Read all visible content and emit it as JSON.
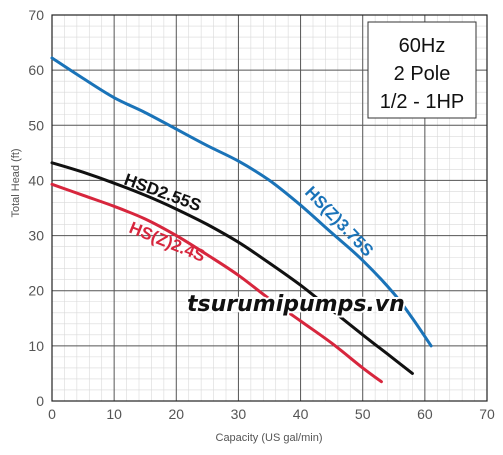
{
  "chart_data": {
    "type": "line",
    "xlabel": "Capacity (US gal/min)",
    "ylabel": "Total Head (ft)",
    "xlim": [
      0,
      70
    ],
    "ylim": [
      0,
      70
    ],
    "x_ticks": [
      "0",
      "10",
      "20",
      "30",
      "40",
      "50",
      "60",
      "70"
    ],
    "y_ticks": [
      "0",
      "10",
      "20",
      "30",
      "40",
      "50",
      "60",
      "70"
    ],
    "grid": true,
    "minor_grid": true,
    "info_box": [
      "60Hz",
      "2 Pole",
      "1/2 - 1HP"
    ],
    "watermark": "tsurumipumps.vn",
    "series": [
      {
        "name": "HS(Z)3.75S",
        "color": "#1a73b8",
        "x": [
          0,
          5,
          10,
          15,
          20,
          25,
          30,
          35,
          40,
          45,
          50,
          55,
          58,
          61
        ],
        "y": [
          62.2,
          58.5,
          55.0,
          52.3,
          49.3,
          46.3,
          43.5,
          40.0,
          35.5,
          30.5,
          25.5,
          19.5,
          15.0,
          10.0
        ]
      },
      {
        "name": "HSD2.55S",
        "color": "#111111",
        "x": [
          0,
          5,
          10,
          15,
          20,
          25,
          30,
          35,
          40,
          45,
          50,
          54,
          58
        ],
        "y": [
          43.2,
          41.5,
          39.5,
          37.3,
          34.8,
          32.0,
          28.8,
          25.0,
          21.0,
          16.5,
          12.0,
          8.5,
          5.0
        ]
      },
      {
        "name": "HS(Z)2.4S",
        "color": "#d7263d",
        "x": [
          0,
          5,
          10,
          15,
          20,
          25,
          30,
          35,
          40,
          45,
          50,
          53
        ],
        "y": [
          39.3,
          37.3,
          35.3,
          33.0,
          30.0,
          26.5,
          22.8,
          18.5,
          14.5,
          10.5,
          6.0,
          3.5
        ]
      }
    ]
  }
}
